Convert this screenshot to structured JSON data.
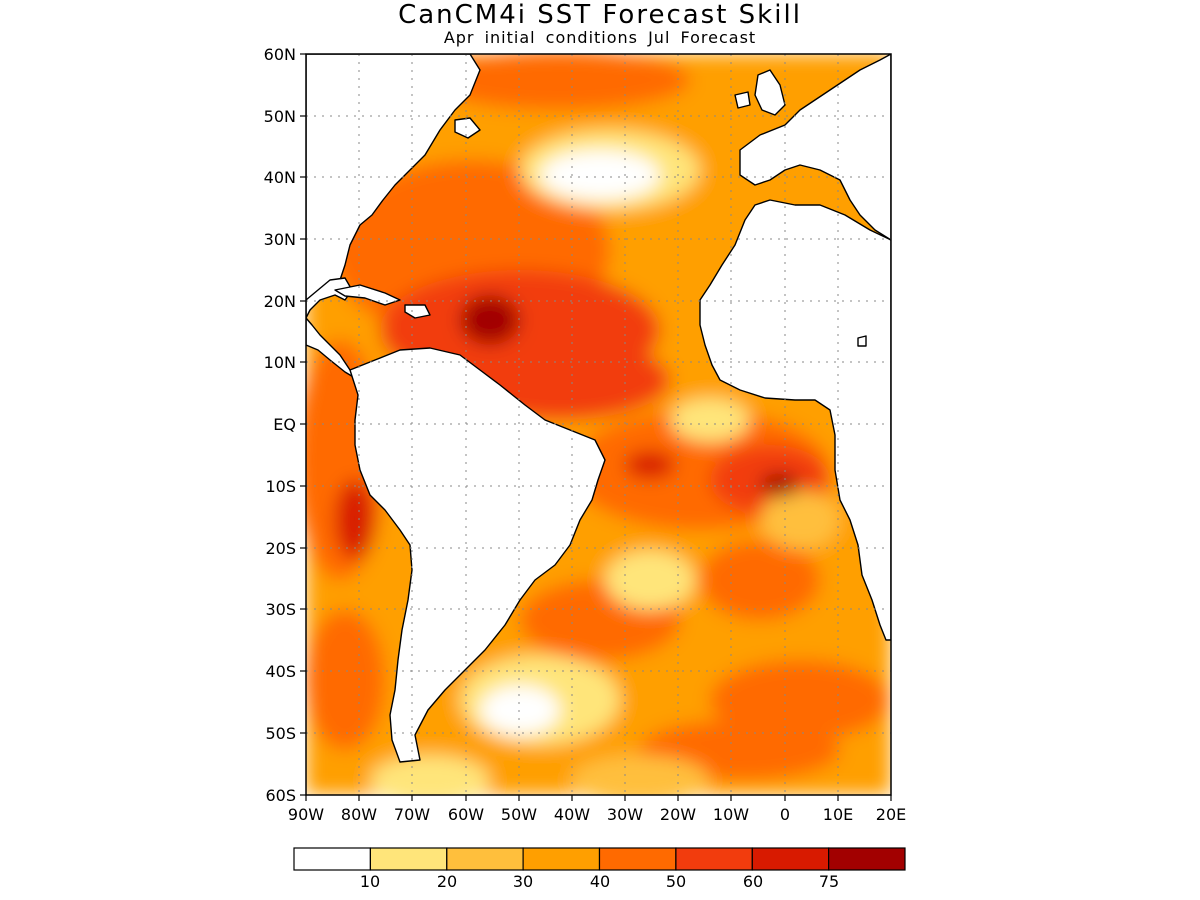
{
  "title": "CanCM4i SST Forecast Skill",
  "subtitle": "Apr initial conditions   Jul Forecast",
  "map": {
    "lon_range": [
      -90,
      20
    ],
    "lat_range": [
      -60,
      60
    ],
    "lat_labels": [
      "60N",
      "50N",
      "40N",
      "30N",
      "20N",
      "10N",
      "EQ",
      "10S",
      "20S",
      "30S",
      "40S",
      "50S",
      "60S"
    ],
    "lon_labels": [
      "90W",
      "80W",
      "70W",
      "60W",
      "50W",
      "40W",
      "30W",
      "20W",
      "10W",
      "0",
      "10E",
      "20E"
    ],
    "grid": "dotted"
  },
  "colorbar": {
    "labels": [
      "10",
      "20",
      "30",
      "40",
      "50",
      "60",
      "75"
    ],
    "colors": [
      "#ffffff",
      "#ffe57a",
      "#ffbf3c",
      "#ff9f00",
      "#ff6a00",
      "#f23c0d",
      "#d81a00",
      "#a20000"
    ]
  }
}
